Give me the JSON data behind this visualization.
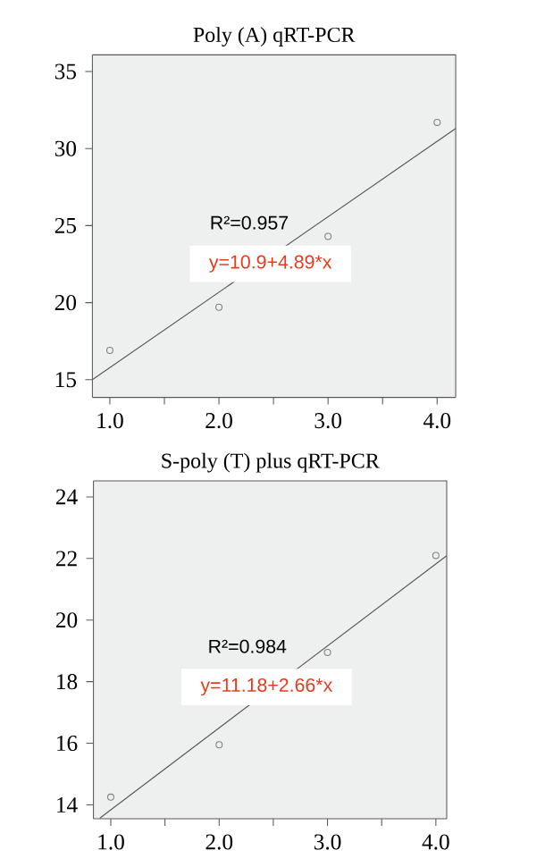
{
  "chart_data": [
    {
      "type": "scatter",
      "title": "Poly (A) qRT-PCR",
      "annotations": [
        "R²=0.957",
        "y=10.9+4.89*x"
      ],
      "xlim": [
        0.84,
        4.17
      ],
      "ylim": [
        13.85,
        36.08
      ],
      "xticks": [
        {
          "value": 1,
          "label": "1.0"
        },
        {
          "value": 1.5,
          "label": null
        },
        {
          "value": 2,
          "label": "2.0"
        },
        {
          "value": 2.5,
          "label": null
        },
        {
          "value": 3,
          "label": "3.0"
        },
        {
          "value": 3.5,
          "label": null
        },
        {
          "value": 4,
          "label": "4.0"
        }
      ],
      "yticks": [
        15,
        20,
        25,
        30,
        35
      ],
      "series": [
        {
          "type": "scatter",
          "x": [
            1,
            2,
            3,
            4
          ],
          "values": [
            16.9,
            19.7,
            24.3,
            31.7
          ],
          "color": "#808080",
          "marker": "circle"
        },
        {
          "type": "line",
          "x": [
            0.84,
            4.17
          ],
          "values": [
            15.0,
            31.3
          ],
          "color": "#555555",
          "marker": "none"
        }
      ]
    },
    {
      "type": "scatter",
      "title": "S-poly (T) plus qRT-PCR",
      "annotations": [
        "R²=0.984",
        "y=11.18+2.66*x"
      ],
      "xlim": [
        0.84,
        4.1
      ],
      "ylim": [
        13.55,
        24.52
      ],
      "xticks": [
        {
          "value": 1,
          "label": "1.0"
        },
        {
          "value": 1.5,
          "label": null
        },
        {
          "value": 2,
          "label": "2.0"
        },
        {
          "value": 2.5,
          "label": null
        },
        {
          "value": 3,
          "label": "3.0"
        },
        {
          "value": 3.5,
          "label": null
        },
        {
          "value": 4,
          "label": "4.0"
        }
      ],
      "yticks": [
        14,
        16,
        18,
        20,
        22,
        24
      ],
      "series": [
        {
          "type": "scatter",
          "x": [
            1,
            2,
            3,
            4
          ],
          "values": [
            14.25,
            15.95,
            18.95,
            22.1
          ],
          "color": "#808080",
          "marker": "circle"
        },
        {
          "type": "line",
          "x": [
            0.9,
            4.1
          ],
          "values": [
            13.57,
            22.09
          ],
          "color": "#555555",
          "marker": "none"
        }
      ]
    }
  ]
}
